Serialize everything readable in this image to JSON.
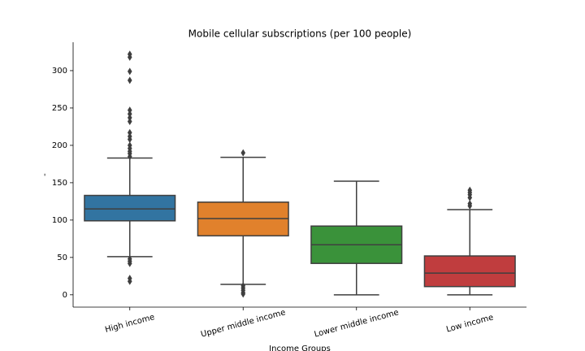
{
  "chart_data": {
    "type": "box",
    "title": "Mobile cellular subscriptions (per 100 people)",
    "x_label": "Income Groups",
    "y_label": "-",
    "categories": [
      "High income",
      "Upper middle income",
      "Lower middle income",
      "Low income"
    ],
    "colors": [
      "#3274a1",
      "#e1812c",
      "#3a923a",
      "#c03d3e"
    ],
    "boxes": [
      {
        "whislo": 51,
        "q1": 99,
        "median": 115,
        "q3": 133,
        "whishi": 183,
        "outliers": [
          322,
          318,
          299,
          287,
          247,
          242,
          237,
          232,
          217,
          212,
          208,
          200,
          196,
          192,
          189,
          185,
          48,
          45,
          42,
          22,
          18
        ]
      },
      {
        "whislo": 14,
        "q1": 79,
        "median": 102,
        "q3": 124,
        "whishi": 184,
        "outliers": [
          190,
          12,
          9,
          6,
          3,
          1
        ]
      },
      {
        "whislo": 0,
        "q1": 42,
        "median": 67,
        "q3": 92,
        "whishi": 152,
        "outliers": []
      },
      {
        "whislo": 0,
        "q1": 11,
        "median": 29,
        "q3": 52,
        "whishi": 114,
        "outliers": [
          140,
          137,
          134,
          130,
          122,
          119
        ]
      }
    ],
    "ylim": [
      -16.5,
      338
    ],
    "yticks": [
      0,
      50,
      100,
      150,
      200,
      250,
      300
    ]
  }
}
